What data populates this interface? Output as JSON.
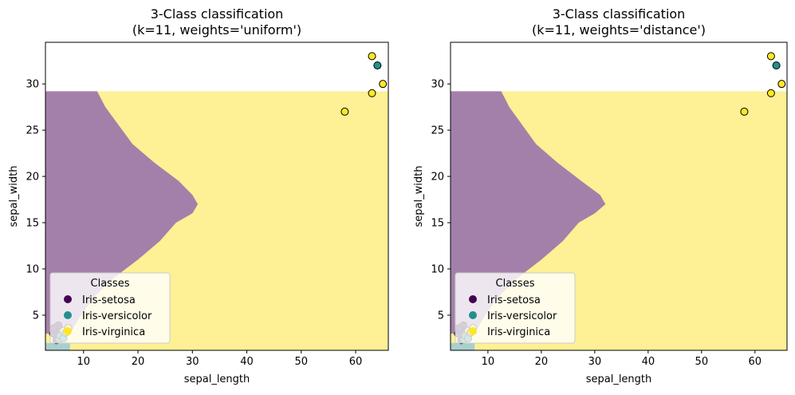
{
  "chart_data": [
    {
      "type": "scatter",
      "title": "3-Class classification\n(k=11, weights='uniform')",
      "xlabel": "sepal_length",
      "ylabel": "sepal_width",
      "xlim": [
        3,
        66
      ],
      "ylim": [
        1.2,
        34.5
      ],
      "xticks": [
        10,
        20,
        30,
        40,
        50,
        60
      ],
      "yticks": [
        5,
        10,
        15,
        20,
        25,
        30
      ],
      "legend": {
        "title": "Classes",
        "placement": "lower-left",
        "entries": [
          "Iris-setosa",
          "Iris-versicolor",
          "Iris-virginica"
        ]
      },
      "regions": {
        "boundary_top": 29.2,
        "setosa_base": 2.0,
        "setosa_max_x": 7.5,
        "purple_boundary": [
          [
            29.2,
            12.5
          ],
          [
            27.5,
            14.0
          ],
          [
            25.5,
            16.5
          ],
          [
            23.5,
            19.0
          ],
          [
            21.5,
            23.0
          ],
          [
            19.5,
            27.5
          ],
          [
            18.0,
            30.0
          ],
          [
            17.0,
            31.0
          ],
          [
            16.0,
            30.0
          ],
          [
            15.0,
            27.0
          ],
          [
            13.0,
            24.0
          ],
          [
            11.0,
            20.0
          ],
          [
            9.0,
            15.5
          ],
          [
            7.0,
            12.0
          ],
          [
            5.0,
            9.5
          ],
          [
            3.0,
            7.5
          ]
        ]
      },
      "series": [
        {
          "name": "Iris-setosa",
          "points": [
            [
              4.4,
              3.0
            ],
            [
              4.8,
              3.4
            ],
            [
              5.0,
              2.3
            ],
            [
              5.4,
              3.9
            ],
            [
              4.6,
              3.6
            ]
          ]
        },
        {
          "name": "Iris-versicolor",
          "points": [
            [
              64,
              32
            ],
            [
              5.5,
              2.4
            ],
            [
              6.0,
              2.7
            ],
            [
              5.7,
              2.8
            ],
            [
              6.3,
              2.5
            ]
          ]
        },
        {
          "name": "Iris-virginica",
          "points": [
            [
              63,
              33
            ],
            [
              65,
              30
            ],
            [
              63,
              29
            ],
            [
              58,
              27
            ],
            [
              6.3,
              3.3
            ],
            [
              7.2,
              3.6
            ],
            [
              6.7,
              3.1
            ],
            [
              6.9,
              3.2
            ]
          ]
        }
      ]
    },
    {
      "type": "scatter",
      "title": "3-Class classification\n(k=11, weights='distance')",
      "xlabel": "sepal_length",
      "ylabel": "sepal_width",
      "xlim": [
        3,
        66
      ],
      "ylim": [
        1.2,
        34.5
      ],
      "xticks": [
        10,
        20,
        30,
        40,
        50,
        60
      ],
      "yticks": [
        5,
        10,
        15,
        20,
        25,
        30
      ],
      "legend": {
        "title": "Classes",
        "placement": "lower-left",
        "entries": [
          "Iris-setosa",
          "Iris-versicolor",
          "Iris-virginica"
        ]
      },
      "regions": {
        "boundary_top": 29.2,
        "setosa_base": 2.0,
        "setosa_max_x": 7.5,
        "purple_boundary": [
          [
            29.2,
            12.5
          ],
          [
            27.5,
            14.0
          ],
          [
            25.5,
            16.5
          ],
          [
            23.5,
            19.0
          ],
          [
            21.5,
            23.0
          ],
          [
            19.5,
            27.5
          ],
          [
            18.0,
            31.0
          ],
          [
            17.0,
            32.0
          ],
          [
            16.0,
            30.0
          ],
          [
            15.0,
            27.0
          ],
          [
            13.0,
            24.0
          ],
          [
            11.0,
            20.0
          ],
          [
            9.0,
            15.5
          ],
          [
            7.0,
            12.0
          ],
          [
            5.0,
            9.5
          ],
          [
            3.0,
            7.5
          ]
        ]
      },
      "series": [
        {
          "name": "Iris-setosa",
          "points": [
            [
              4.4,
              3.0
            ],
            [
              4.8,
              3.4
            ],
            [
              5.0,
              2.3
            ],
            [
              5.4,
              3.9
            ],
            [
              4.6,
              3.6
            ]
          ]
        },
        {
          "name": "Iris-versicolor",
          "points": [
            [
              64,
              32
            ],
            [
              5.5,
              2.4
            ],
            [
              6.0,
              2.7
            ],
            [
              5.7,
              2.8
            ],
            [
              6.3,
              2.5
            ]
          ]
        },
        {
          "name": "Iris-virginica",
          "points": [
            [
              63,
              33
            ],
            [
              65,
              30
            ],
            [
              63,
              29
            ],
            [
              58,
              27
            ],
            [
              6.3,
              3.3
            ],
            [
              7.2,
              3.6
            ],
            [
              6.7,
              3.1
            ],
            [
              6.9,
              3.2
            ]
          ]
        }
      ]
    }
  ],
  "colors": {
    "setosa": "#440154",
    "versicolor": "#21918c",
    "virginica": "#fde725",
    "region_setosa": "#a9cfce",
    "region_versicolor": "#a380a9",
    "region_virginica": "#fdf095"
  }
}
